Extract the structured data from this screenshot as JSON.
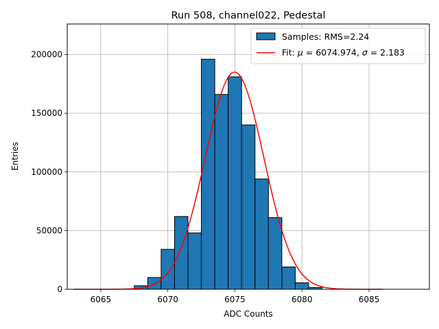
{
  "chart_data": {
    "type": "histogram",
    "title": "Run 508, channel022, Pedestal",
    "xlabel": "ADC Counts",
    "ylabel": "Entries",
    "xlim": [
      6062.5,
      6089.5
    ],
    "ylim": [
      0,
      226000
    ],
    "xticks": [
      6065,
      6070,
      6075,
      6080,
      6085
    ],
    "yticks": [
      0,
      50000,
      100000,
      150000,
      200000
    ],
    "grid": true,
    "legend_position": "top-right",
    "bar_color": "#1f77b4",
    "fit_color": "#ff0000",
    "bin_width": 1,
    "bins": [
      {
        "x": 6068,
        "value": 3000
      },
      {
        "x": 6069,
        "value": 10000
      },
      {
        "x": 6070,
        "value": 34000
      },
      {
        "x": 6071,
        "value": 62000
      },
      {
        "x": 6072,
        "value": 48000
      },
      {
        "x": 6073,
        "value": 196000
      },
      {
        "x": 6074,
        "value": 166000
      },
      {
        "x": 6075,
        "value": 181000
      },
      {
        "x": 6076,
        "value": 140000
      },
      {
        "x": 6077,
        "value": 94000
      },
      {
        "x": 6078,
        "value": 61000
      },
      {
        "x": 6079,
        "value": 19000
      },
      {
        "x": 6080,
        "value": 5500
      },
      {
        "x": 6081,
        "value": 1500
      }
    ],
    "fit": {
      "mu": 6074.974,
      "sigma": 2.183,
      "amplitude": 185000,
      "x_range": [
        6063,
        6086
      ]
    },
    "legend": [
      {
        "kind": "patch",
        "label": "Samples: RMS=2.24"
      },
      {
        "kind": "line",
        "label_prefix": "Fit: ",
        "label_mu": "μ",
        "label_mid": " = 6074.974, ",
        "label_sigma": "σ",
        "label_suffix": " = 2.183"
      }
    ]
  }
}
